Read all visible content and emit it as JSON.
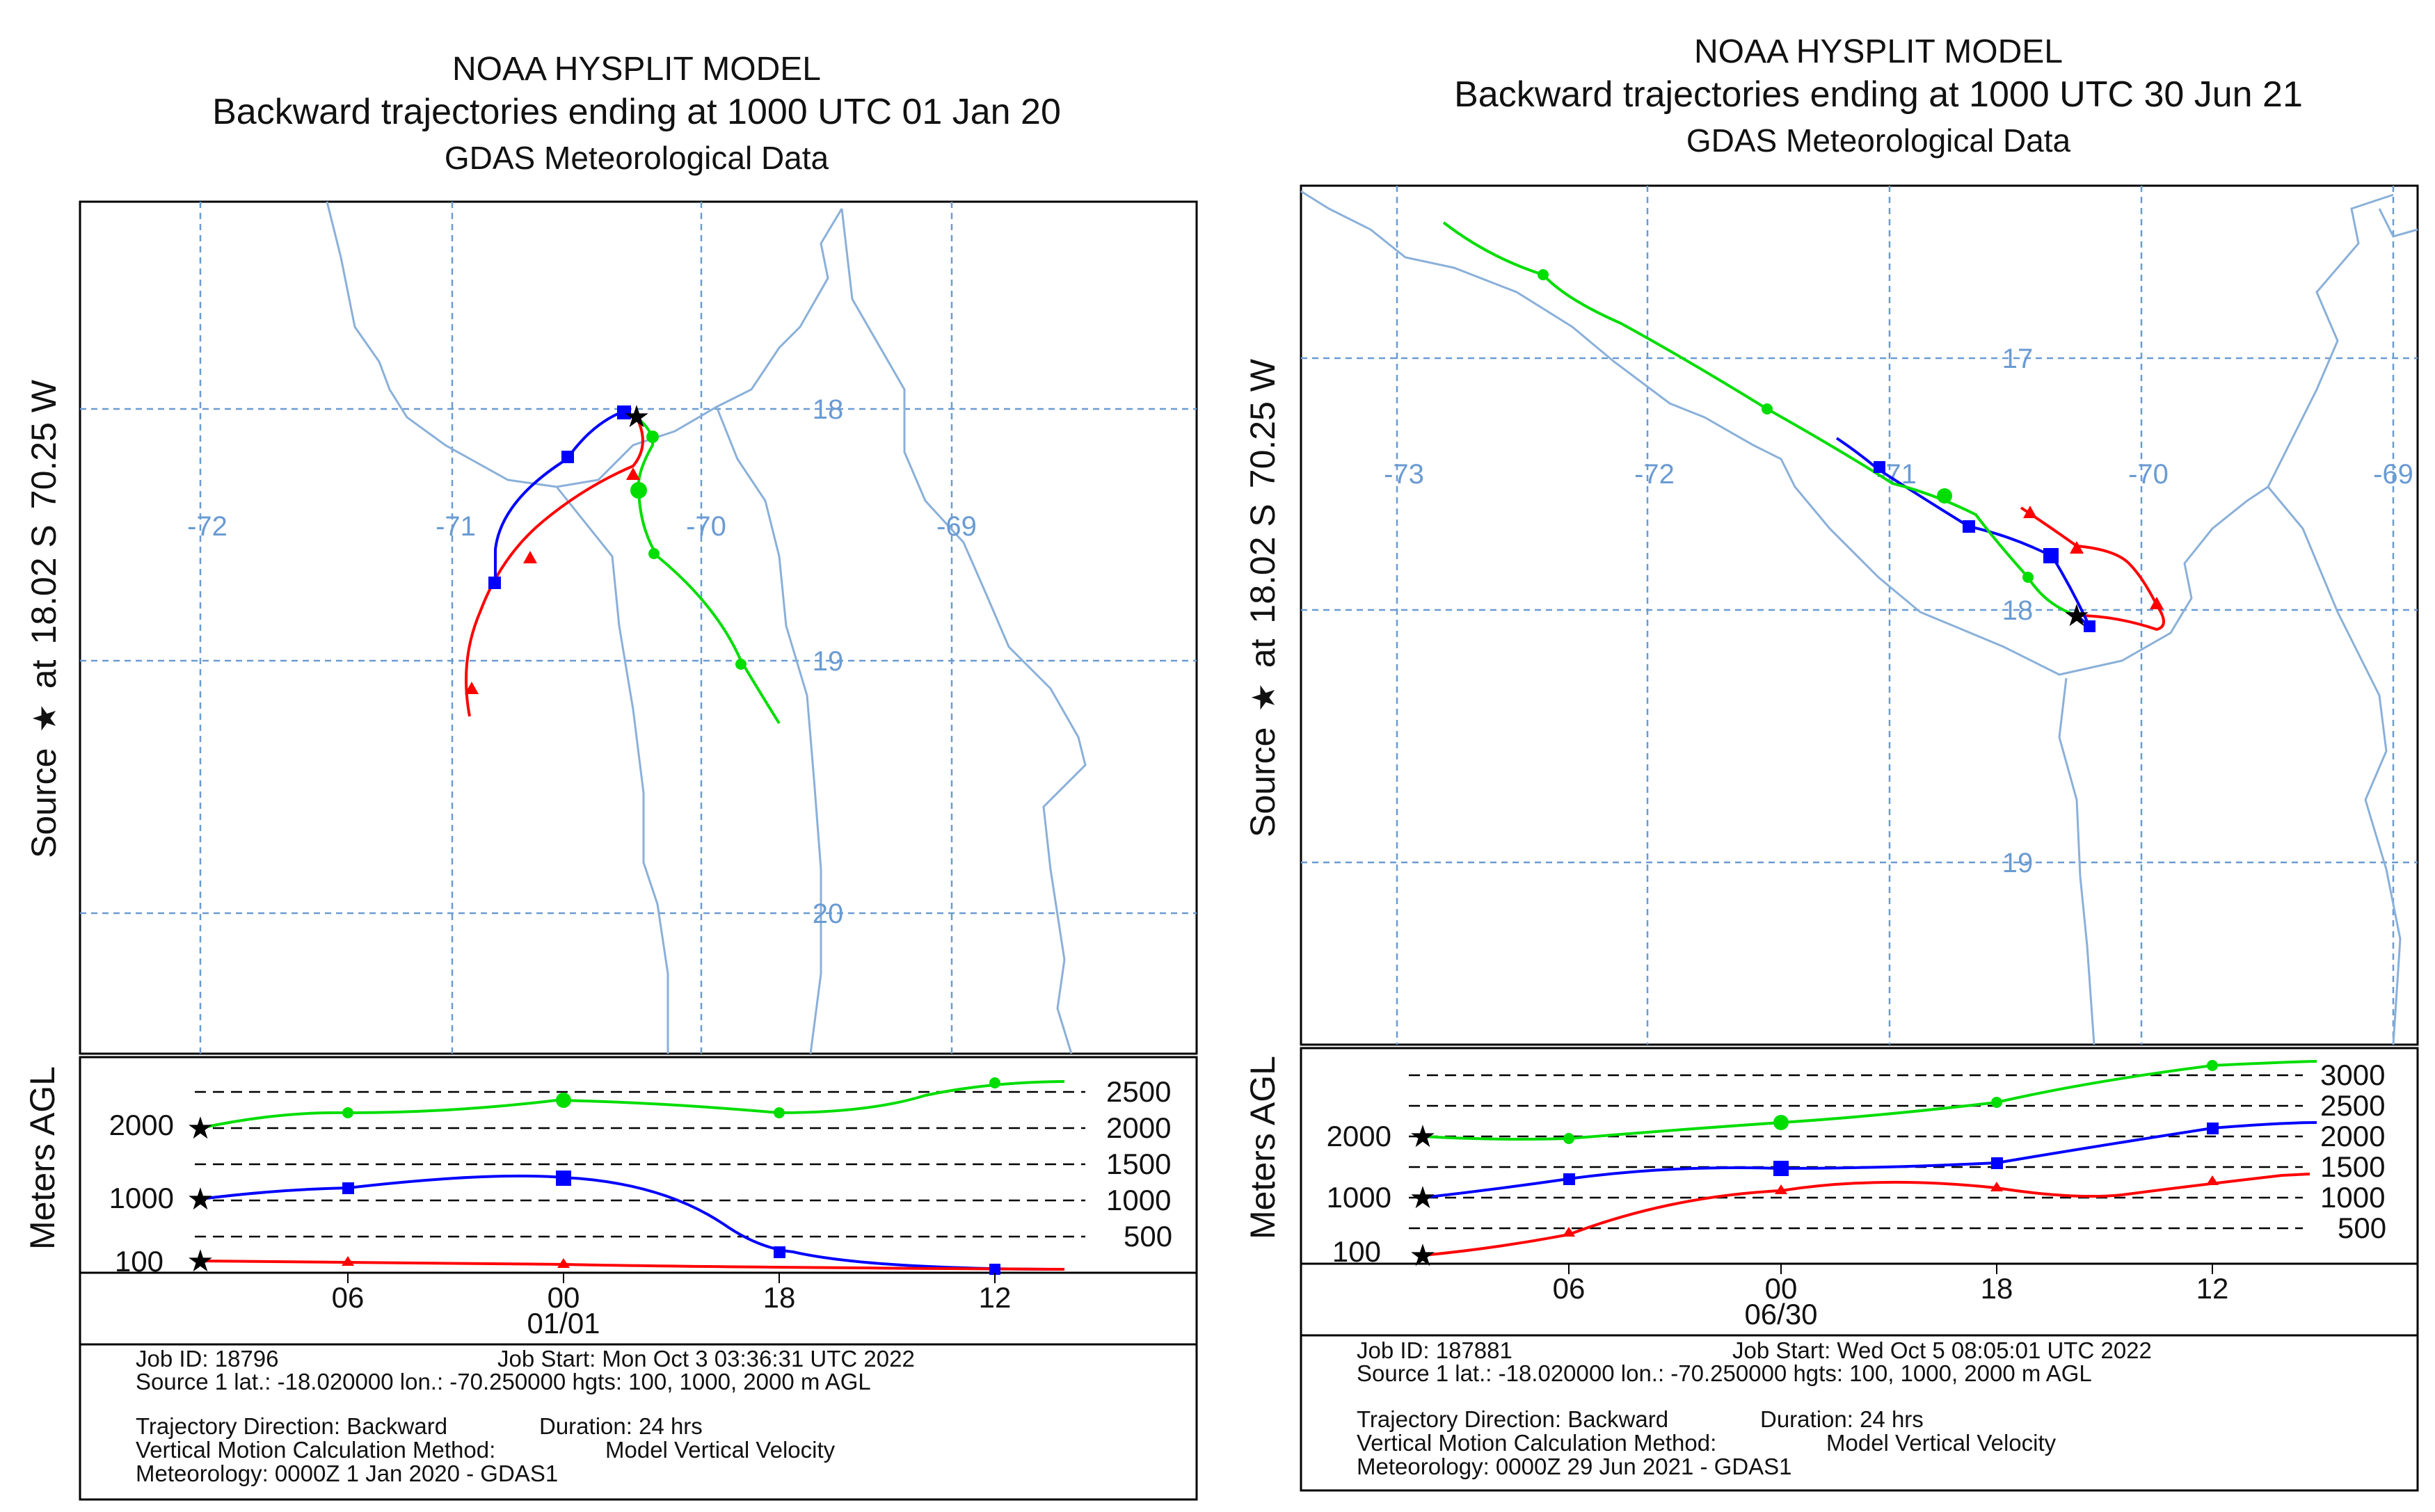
{
  "panels": [
    {
      "title": "NOAA HYSPLIT MODEL",
      "subtitle": "Backward trajectories ending at 1000 UTC 01 Jan 20",
      "met_line": "GDAS Meteorological Data",
      "source_label": "Source ★ at 18.02 S 70.25 W",
      "source_label_parts": [
        "Source",
        "at",
        "18.02 S",
        "70.25 W"
      ],
      "lon_labels": [
        "-72",
        "-71",
        "-70",
        "-69"
      ],
      "lat_labels": [
        "18",
        "19",
        "20"
      ],
      "vertical_axis_label": "Meters AGL",
      "start_heights": [
        "2000",
        "1000",
        "100"
      ],
      "right_ticks": [
        "2500",
        "2000",
        "1500",
        "1000",
        "500"
      ],
      "time_ticks": [
        "06",
        "00",
        "18",
        "12"
      ],
      "date_label": "01/01",
      "info": {
        "job_id": "Job ID: 18796",
        "job_start": "Job Start: Mon Oct  3 03:36:31 UTC 2022",
        "source": "Source 1 lat.: -18.020000  lon.: -70.250000  hgts: 100, 1000, 2000 m AGL",
        "direction": "Trajectory Direction: Backward",
        "duration": "Duration: 24 hrs",
        "vertical_method": "Vertical Motion Calculation Method:",
        "vertical_method_value": "Model Vertical Velocity",
        "meteorology": "Meteorology: 0000Z  1 Jan 2020 - GDAS1"
      }
    },
    {
      "title": "NOAA HYSPLIT MODEL",
      "subtitle": "Backward trajectories ending at 1000 UTC 30 Jun 21",
      "met_line": "GDAS Meteorological Data",
      "source_label": "Source ★ at 18.02 S 70.25 W",
      "source_label_parts": [
        "Source",
        "at",
        "18.02 S",
        "70.25 W"
      ],
      "lon_labels": [
        "-73",
        "-72",
        "-71",
        "-70",
        "-69"
      ],
      "lat_labels": [
        "17",
        "18",
        "19"
      ],
      "vertical_axis_label": "Meters AGL",
      "start_heights": [
        "2000",
        "1000",
        "100"
      ],
      "right_ticks": [
        "3000",
        "2500",
        "2000",
        "1500",
        "1000",
        "500"
      ],
      "time_ticks": [
        "06",
        "00",
        "18",
        "12"
      ],
      "date_label": "06/30",
      "info": {
        "job_id": "Job ID: 187881",
        "job_start": "Job Start: Wed Oct  5 08:05:01 UTC 2022",
        "source": "Source 1 lat.: -18.020000  lon.: -70.250000  hgts: 100, 1000, 2000 m AGL",
        "direction": "Trajectory Direction: Backward",
        "duration": "Duration: 24 hrs",
        "vertical_method": "Vertical Motion Calculation Method:",
        "vertical_method_value": "Model Vertical Velocity",
        "meteorology": "Meteorology: 0000Z 29 Jun 2021 - GDAS1"
      }
    }
  ],
  "colors": {
    "traj_100m": "#ff0000",
    "traj_1000m": "#0000ff",
    "traj_2000m": "#00dd00",
    "grid": "#6a9bd3",
    "coast": "#8ab0d9"
  }
}
